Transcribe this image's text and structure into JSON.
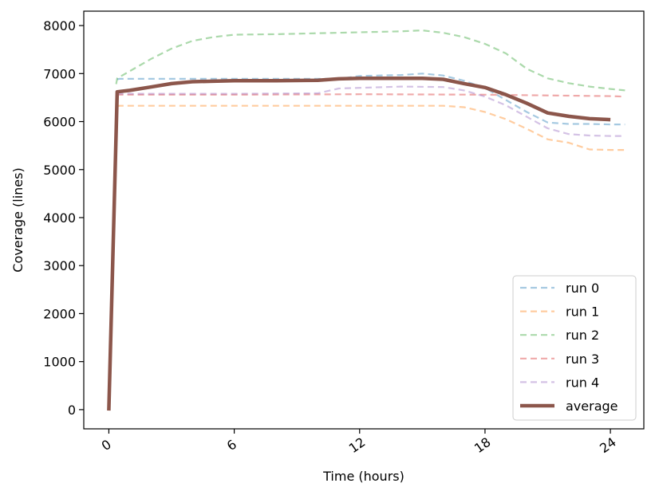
{
  "chart_data": {
    "type": "line",
    "title": "",
    "xlabel": "Time (hours)",
    "ylabel": "Coverage (lines)",
    "xlim": [
      -1.2,
      25.6
    ],
    "ylim": [
      -400,
      8300
    ],
    "xticks": [
      0,
      6,
      12,
      18,
      24
    ],
    "xtick_labels": [
      "0",
      "6",
      "12",
      "18",
      "24"
    ],
    "yticks": [
      0,
      1000,
      2000,
      3000,
      4000,
      5000,
      6000,
      7000,
      8000
    ],
    "ytick_labels": [
      "0",
      "1000",
      "2000",
      "3000",
      "4000",
      "5000",
      "6000",
      "7000",
      "8000"
    ],
    "grid": false,
    "legend_position": "lower-right",
    "series": [
      {
        "name": "run 0",
        "color": "#1f77b4",
        "style": "dashed",
        "x": [
          0.4,
          0.5,
          2,
          6,
          11,
          12,
          14,
          15,
          16,
          17,
          18,
          19,
          20,
          21,
          22,
          23,
          24,
          24.7
        ],
        "y": [
          6880,
          6890,
          6890,
          6890,
          6890,
          6950,
          6970,
          7000,
          6960,
          6850,
          6700,
          6450,
          6200,
          5980,
          5950,
          5950,
          5940,
          5940
        ]
      },
      {
        "name": "run 1",
        "color": "#ff7f0e",
        "style": "dashed",
        "x": [
          0.4,
          0.5,
          4,
          10,
          16,
          17,
          18,
          19,
          20,
          21,
          22,
          23,
          24,
          24.7
        ],
        "y": [
          6320,
          6330,
          6330,
          6330,
          6330,
          6300,
          6200,
          6050,
          5850,
          5630,
          5560,
          5420,
          5410,
          5410
        ]
      },
      {
        "name": "run 2",
        "color": "#2ca02c",
        "style": "dashed",
        "x": [
          0.35,
          0.4,
          1,
          2,
          3,
          4,
          5,
          6,
          8,
          10,
          12,
          14,
          15,
          16,
          17,
          18,
          19,
          20,
          21,
          22,
          23,
          24,
          24.7
        ],
        "y": [
          6780,
          6900,
          7050,
          7300,
          7520,
          7680,
          7760,
          7810,
          7820,
          7840,
          7860,
          7880,
          7900,
          7850,
          7760,
          7620,
          7420,
          7100,
          6900,
          6800,
          6730,
          6680,
          6650
        ]
      },
      {
        "name": "run 3",
        "color": "#d62728",
        "style": "dashed",
        "x": [
          0.4,
          0.5,
          6,
          12,
          18,
          24,
          24.7
        ],
        "y": [
          6540,
          6560,
          6560,
          6570,
          6560,
          6530,
          6520
        ]
      },
      {
        "name": "run 4",
        "color": "#9467bd",
        "style": "dashed",
        "x": [
          0.4,
          0.5,
          6,
          10,
          11,
          14,
          16,
          17,
          18,
          19,
          20,
          21,
          22,
          23,
          24,
          24.7
        ],
        "y": [
          6560,
          6580,
          6580,
          6590,
          6690,
          6730,
          6720,
          6650,
          6520,
          6340,
          6100,
          5860,
          5740,
          5710,
          5700,
          5700
        ]
      },
      {
        "name": "average",
        "color": "#8c564b",
        "style": "solid",
        "x": [
          0,
          0.4,
          1,
          2,
          3,
          4,
          5,
          6,
          8,
          10,
          11,
          12,
          14,
          15,
          16,
          17,
          18,
          19,
          20,
          21,
          22,
          23,
          24
        ],
        "y": [
          -20,
          6620,
          6650,
          6720,
          6790,
          6830,
          6840,
          6850,
          6850,
          6860,
          6890,
          6900,
          6900,
          6900,
          6880,
          6790,
          6710,
          6560,
          6380,
          6180,
          6110,
          6060,
          6040
        ]
      }
    ]
  }
}
